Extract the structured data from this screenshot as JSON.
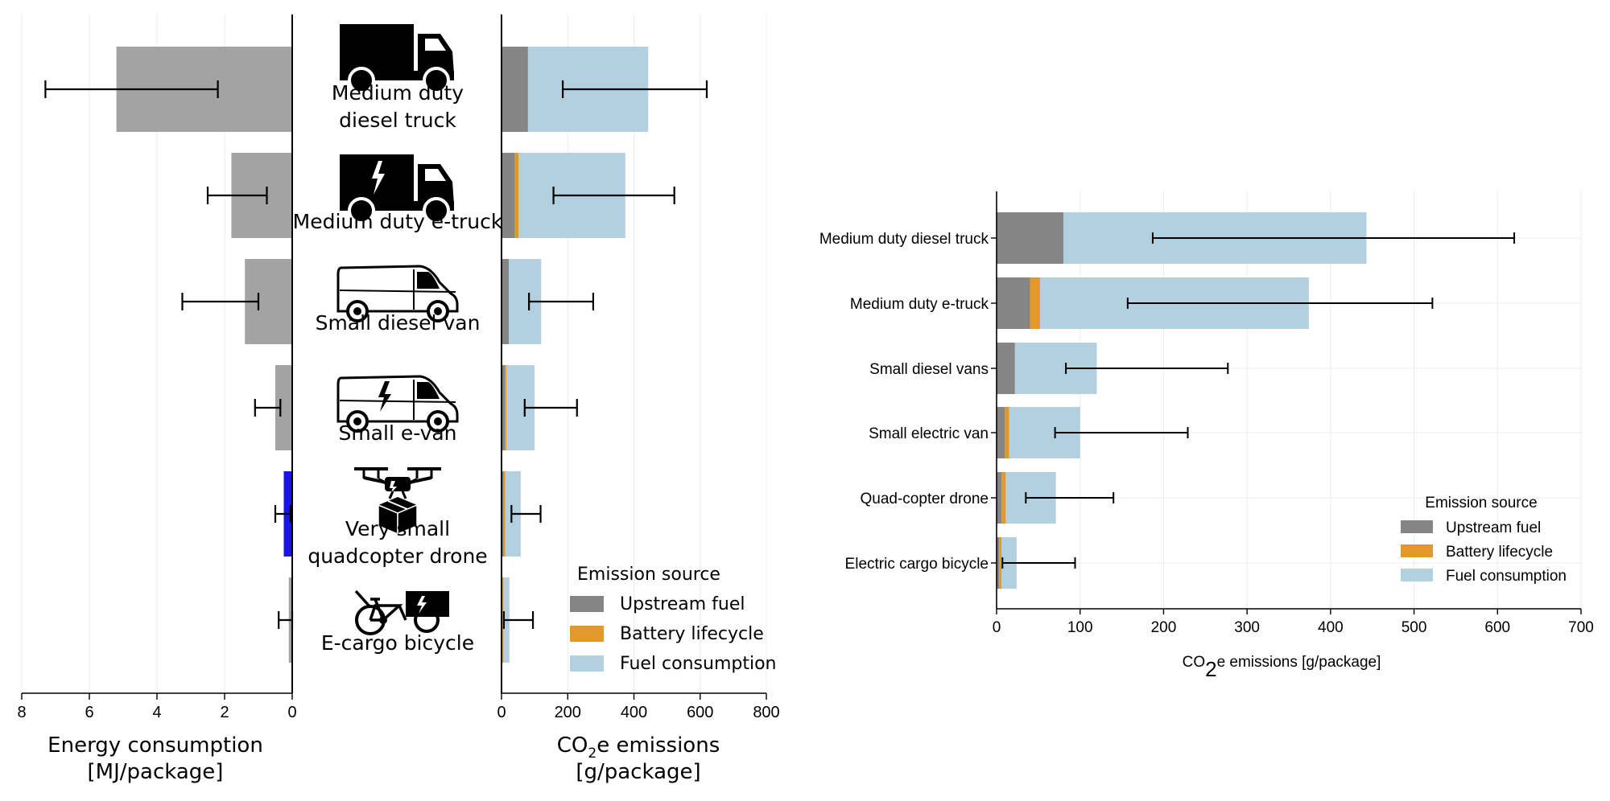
{
  "colors": {
    "upstream": "#858585",
    "battery": "#e0992a",
    "fuel": "#b3d0e0",
    "energy": "#a3a3a3",
    "energy_highlight": "#1a14e6",
    "grid": "#ececec"
  },
  "icons": [
    "truck-icon",
    "e-truck-icon",
    "van-icon",
    "e-van-icon",
    "drone-icon",
    "cargo-bike-icon"
  ],
  "chart_data": [
    {
      "type": "bar",
      "orientation": "horizontal",
      "categories": [
        "Medium duty diesel truck",
        "Medium duty e-truck",
        "Small diesel van",
        "Small e-van",
        "Very small quadcopter drone",
        "E-cargo bicycle"
      ],
      "category_lines": [
        [
          "Medium duty",
          "diesel truck"
        ],
        [
          "Medium duty e-truck"
        ],
        [
          "Small diesel van"
        ],
        [
          "Small e-van"
        ],
        [
          "Very small",
          "quadcopter drone"
        ],
        [
          "E-cargo bicycle"
        ]
      ],
      "values": [
        5.2,
        1.8,
        1.4,
        0.5,
        0.25,
        0.1
      ],
      "error_low": [
        2.2,
        0.75,
        1.0,
        0.35,
        0.05,
        0.0
      ],
      "error_high": [
        7.3,
        2.5,
        3.25,
        1.1,
        0.5,
        0.4
      ],
      "highlight_index": 4,
      "xlim": [
        8,
        0
      ],
      "xticks": [
        8,
        6,
        4,
        2,
        0
      ],
      "xlabel": [
        "Energy consumption",
        "[MJ/package]"
      ],
      "grid": true
    },
    {
      "type": "bar",
      "orientation": "horizontal",
      "stacked": true,
      "categories": [
        "Medium duty diesel truck",
        "Medium duty e-truck",
        "Small diesel van",
        "Small e-van",
        "Very small quadcopter drone",
        "E-cargo bicycle"
      ],
      "series": [
        {
          "name": "Upstream fuel",
          "values": [
            80,
            40,
            22,
            10,
            6,
            3
          ]
        },
        {
          "name": "Battery lifecycle",
          "values": [
            0,
            12,
            0,
            5,
            5,
            3
          ]
        },
        {
          "name": "Fuel consumption",
          "values": [
            363,
            322,
            98,
            85,
            47,
            18
          ]
        }
      ],
      "error_low": [
        185,
        157,
        83,
        70,
        30,
        7
      ],
      "error_high": [
        620,
        522,
        277,
        228,
        118,
        95
      ],
      "xlim": [
        0,
        800
      ],
      "xticks": [
        0,
        200,
        400,
        600,
        800
      ],
      "xlabel_parts": [
        "CO",
        "2",
        "e emissions"
      ],
      "xlabel_line2": "[g/package]",
      "legend_title": "Emission source",
      "legend_position": "lower-right",
      "grid": true
    },
    {
      "type": "bar",
      "orientation": "horizontal",
      "stacked": true,
      "categories": [
        "Medium duty diesel truck",
        "Medium duty e-truck",
        "Small diesel vans",
        "Small electric van",
        "Quad-copter drone",
        "Electric cargo bicycle"
      ],
      "series": [
        {
          "name": "Upstream fuel",
          "values": [
            80,
            40,
            22,
            10,
            6,
            3
          ]
        },
        {
          "name": "Battery lifecycle",
          "values": [
            0,
            12,
            0,
            5,
            5,
            3
          ]
        },
        {
          "name": "Fuel consumption",
          "values": [
            363,
            322,
            98,
            85,
            60,
            18
          ]
        }
      ],
      "error_low": [
        187,
        157,
        83,
        70,
        35,
        7
      ],
      "error_high": [
        620,
        522,
        277,
        229,
        140,
        94
      ],
      "xlim": [
        0,
        700
      ],
      "xticks": [
        0,
        100,
        200,
        300,
        400,
        500,
        600,
        700
      ],
      "xlabel_parts": [
        "CO",
        "2",
        "e emissions [g/package]"
      ],
      "legend_title": "Emission source",
      "legend_position": "lower-right",
      "grid": true
    }
  ]
}
